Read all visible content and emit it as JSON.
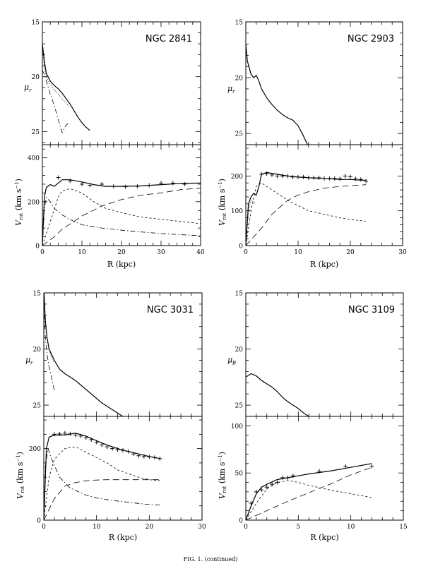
{
  "caption": "FIG. 1. (continued)",
  "chart_data": [
    {
      "type": "line",
      "title": "NGC 2841",
      "top": {
        "ylabel_main": "μ",
        "ylabel_sub": "r",
        "yticks": [
          "15",
          "20",
          "25"
        ],
        "ylim": [
          15,
          26.2
        ],
        "xlim": [
          0,
          40
        ],
        "series": [
          {
            "style": "solid",
            "x": [
              0,
              0.5,
              1,
              2,
              3,
              4,
              5,
              6,
              7,
              8,
              9,
              10,
              11,
              12
            ],
            "y": [
              17.0,
              18.6,
              19.7,
              20.4,
              20.8,
              21.1,
              21.5,
              22.0,
              22.5,
              23.1,
              23.7,
              24.2,
              24.6,
              24.9
            ]
          },
          {
            "style": "dotted",
            "x": [
              0,
              0.5,
              1,
              2,
              3,
              4,
              5,
              6,
              7
            ],
            "y": [
              17.2,
              19.2,
              20.0,
              20.7,
              21.2,
              21.6,
              22.0,
              22.4,
              22.8
            ]
          },
          {
            "style": "dashdot",
            "x": [
              0,
              0.5,
              1,
              2,
              3,
              4,
              5,
              6,
              7
            ],
            "y": [
              19.4,
              19.8,
              20.4,
              21.6,
              22.6,
              23.9,
              25.1,
              24.4,
              24.2
            ]
          }
        ]
      },
      "bottom": {
        "ylabel": "V",
        "ylabel_sub": "rot",
        "yunit": "(km s",
        "yunit_tail": ")",
        "xlabel": "R (kpc)",
        "xlim": [
          0,
          40
        ],
        "ylim": [
          0,
          460
        ],
        "xticks": [
          "0",
          "10",
          "20",
          "30",
          "40"
        ],
        "yticks": [
          "0",
          "200",
          "400"
        ],
        "points": {
          "x": [
            4,
            7,
            10,
            12,
            15,
            18,
            21,
            24,
            27,
            30,
            33,
            36
          ],
          "y": [
            310,
            295,
            280,
            275,
            280,
            270,
            268,
            270,
            275,
            285,
            285,
            280
          ]
        },
        "series": [
          {
            "style": "solid",
            "x": [
              0,
              0.5,
              1,
              2,
              3,
              4,
              5,
              7,
              10,
              13,
              16,
              20,
              25,
              30,
              35,
              40
            ],
            "y": [
              0,
              220,
              265,
              278,
              270,
              285,
              300,
              300,
              290,
              278,
              270,
              270,
              272,
              278,
              283,
              285
            ]
          },
          {
            "style": "dashed",
            "x": [
              0,
              2,
              4,
              5,
              7,
              10,
              13,
              16,
              20,
              25,
              30,
              35,
              40
            ],
            "y": [
              0,
              110,
              220,
              250,
              260,
              240,
              200,
              170,
              150,
              130,
              120,
              110,
              100
            ]
          },
          {
            "style": "longdash",
            "x": [
              0,
              3,
              5,
              8,
              10,
              15,
              20,
              25,
              30,
              35,
              40
            ],
            "y": [
              0,
              40,
              75,
              110,
              135,
              180,
              210,
              230,
              240,
              255,
              262
            ]
          },
          {
            "style": "dashdot",
            "x": [
              0,
              0.5,
              1,
              2,
              3,
              5,
              8,
              10,
              15,
              20,
              25,
              30,
              35,
              40
            ],
            "y": [
              0,
              170,
              220,
              200,
              170,
              140,
              110,
              95,
              80,
              70,
              62,
              55,
              50,
              45
            ]
          }
        ]
      }
    },
    {
      "type": "line",
      "title": "NGC 2903",
      "top": {
        "ylabel_main": "μ",
        "ylabel_sub": "r",
        "yticks": [
          "15",
          "20",
          "25"
        ],
        "ylim": [
          15,
          26.0
        ],
        "xlim": [
          0,
          30
        ],
        "series": [
          {
            "style": "solid",
            "x": [
              0,
              0.3,
              1,
              1.5,
              2,
              2.5,
              3,
              4,
              5,
              6,
              7,
              8,
              9,
              10,
              11,
              11.8
            ],
            "y": [
              17.0,
              18.5,
              19.7,
              20.0,
              19.8,
              20.3,
              21.0,
              21.8,
              22.4,
              22.9,
              23.3,
              23.6,
              23.8,
              24.3,
              25.2,
              26.0
            ]
          }
        ]
      },
      "bottom": {
        "ylabel": "V",
        "ylabel_sub": "rot",
        "yunit": "(km s",
        "yunit_tail": ")",
        "xlabel": "R (kpc)",
        "xlim": [
          0,
          30
        ],
        "ylim": [
          0,
          290
        ],
        "xticks": [
          "0",
          "10",
          "20",
          "30"
        ],
        "yticks": [
          "0",
          "100",
          "200"
        ],
        "points": {
          "x": [
            3,
            4,
            5,
            6,
            7,
            8,
            9,
            10,
            11,
            12,
            13,
            14,
            15,
            16,
            17,
            18,
            19,
            20,
            21,
            22,
            23
          ],
          "y": [
            205,
            207,
            203,
            200,
            200,
            200,
            197,
            197,
            197,
            195,
            195,
            195,
            193,
            193,
            193,
            192,
            200,
            198,
            192,
            190,
            185
          ]
        },
        "series": [
          {
            "style": "solid",
            "x": [
              0,
              0.5,
              1,
              1.5,
              2,
              2.5,
              3,
              4,
              6,
              8,
              10,
              12,
              14,
              16,
              18,
              20,
              22,
              23
            ],
            "y": [
              0,
              120,
              140,
              150,
              145,
              170,
              205,
              210,
              205,
              200,
              197,
              195,
              193,
              192,
              190,
              190,
              188,
              188
            ]
          },
          {
            "style": "dashed",
            "x": [
              0,
              1,
              2,
              3,
              4,
              6,
              8,
              10,
              12,
              15,
              18,
              20,
              23
            ],
            "y": [
              0,
              100,
              170,
              180,
              170,
              150,
              130,
              115,
              100,
              90,
              80,
              75,
              70
            ]
          },
          {
            "style": "longdash",
            "x": [
              0,
              3,
              5,
              8,
              10,
              12,
              15,
              18,
              20,
              23
            ],
            "y": [
              0,
              50,
              90,
              130,
              145,
              155,
              165,
              170,
              172,
              175
            ]
          },
          {
            "style": "dotted",
            "x": [
              0,
              0.5,
              1,
              2
            ],
            "y": [
              0,
              100,
              130,
              120
            ]
          }
        ]
      }
    },
    {
      "type": "line",
      "title": "NGC 3031",
      "top": {
        "ylabel_main": "μ",
        "ylabel_sub": "r",
        "yticks": [
          "15",
          "20",
          "25"
        ],
        "ylim": [
          15,
          26.0
        ],
        "xlim": [
          0,
          30
        ],
        "series": [
          {
            "style": "solid",
            "x": [
              0,
              0.3,
              0.6,
              1,
              2,
              3,
              4,
              5,
              6,
              7,
              8,
              9,
              10,
              11,
              12,
              13,
              14,
              15
            ],
            "y": [
              14.5,
              17.5,
              19.0,
              20.0,
              21.0,
              21.8,
              22.2,
              22.5,
              22.8,
              23.2,
              23.6,
              24.0,
              24.4,
              24.8,
              25.1,
              25.4,
              25.7,
              26.0
            ]
          },
          {
            "style": "dotted",
            "x": [
              0,
              0.5,
              1,
              1.5,
              2
            ],
            "y": [
              15.5,
              18.5,
              20.0,
              20.8,
              21.2
            ]
          },
          {
            "style": "dashdot",
            "x": [
              0,
              0.3,
              0.6,
              1,
              1.5,
              2
            ],
            "y": [
              16.0,
              19.0,
              20.4,
              21.6,
              22.6,
              23.7
            ]
          }
        ]
      },
      "bottom": {
        "ylabel": "V",
        "ylabel_sub": "rot",
        "yunit": "(km s",
        "yunit_tail": ")",
        "xlabel": "R (kpc)",
        "xlim": [
          0,
          30
        ],
        "ylim": [
          0,
          290
        ],
        "xticks": [
          "0",
          "10",
          "20",
          "30"
        ],
        "yticks": [
          "0",
          "200"
        ],
        "points": {
          "x": [
            2,
            3,
            4,
            5,
            6,
            7,
            8,
            9,
            10,
            11,
            12,
            13,
            14,
            15,
            16,
            17,
            18,
            19,
            20,
            21,
            22
          ],
          "y": [
            240,
            241,
            243,
            241,
            238,
            235,
            230,
            225,
            218,
            210,
            205,
            200,
            197,
            195,
            192,
            185,
            180,
            178,
            177,
            175,
            172
          ]
        },
        "series": [
          {
            "style": "solid",
            "x": [
              0,
              0.5,
              1,
              2,
              4,
              6,
              8,
              10,
              12,
              14,
              16,
              18,
              20,
              22
            ],
            "y": [
              0,
              200,
              232,
              238,
              238,
              243,
              235,
              222,
              210,
              200,
              192,
              185,
              178,
              172
            ]
          },
          {
            "style": "dashed",
            "x": [
              0,
              1,
              2,
              4,
              6,
              8,
              10,
              12,
              14,
              16,
              18,
              20,
              22
            ],
            "y": [
              0,
              120,
              170,
              200,
              205,
              190,
              175,
              160,
              140,
              130,
              120,
              113,
              110
            ]
          },
          {
            "style": "longdash",
            "x": [
              0,
              2,
              4,
              6,
              8,
              10,
              12,
              15,
              18,
              22
            ],
            "y": [
              0,
              60,
              95,
              105,
              110,
              112,
              113,
              113,
              113,
              113
            ]
          },
          {
            "style": "dashdot",
            "x": [
              0,
              0.3,
              0.8,
              1.5,
              3,
              5,
              8,
              10,
              13,
              16,
              19,
              22
            ],
            "y": [
              0,
              150,
              200,
              170,
              120,
              90,
              70,
              62,
              55,
              50,
              45,
              42
            ]
          }
        ]
      }
    },
    {
      "type": "line",
      "title": "NGC 3109",
      "top": {
        "ylabel_main": "μ",
        "ylabel_sub": "B",
        "yticks": [
          "15",
          "20",
          "25"
        ],
        "ylim": [
          15,
          26.0
        ],
        "xlim": [
          0,
          15
        ],
        "series": [
          {
            "style": "solid",
            "x": [
              0,
              0.5,
              1,
              1.5,
              2,
              2.5,
              3,
              3.5,
              4,
              4.5,
              5,
              5.5,
              6
            ],
            "y": [
              22.5,
              22.2,
              22.4,
              22.8,
              23.1,
              23.4,
              23.8,
              24.3,
              24.7,
              25.0,
              25.3,
              25.7,
              26.0
            ]
          }
        ]
      },
      "bottom": {
        "ylabel": "V",
        "ylabel_sub": "rot",
        "yunit": "(km s",
        "yunit_tail": ")",
        "xlabel": "R (kpc)",
        "xlim": [
          0,
          15
        ],
        "ylim": [
          0,
          110
        ],
        "xticks": [
          "0",
          "5",
          "10",
          "15"
        ],
        "yticks": [
          "0",
          "50",
          "100"
        ],
        "points": {
          "x": [
            0.5,
            1,
            1.5,
            2,
            2.5,
            3,
            3.5,
            4,
            4.5,
            7,
            9.5,
            12
          ],
          "y": [
            18,
            30,
            32,
            35,
            38,
            40,
            45,
            45,
            47,
            52,
            57,
            57
          ]
        },
        "series": [
          {
            "style": "solid",
            "x": [
              0,
              0.5,
              1,
              1.5,
              2,
              3,
              4,
              5,
              6,
              8,
              10,
              12
            ],
            "y": [
              0,
              15,
              28,
              35,
              38,
              43,
              45,
              47,
              49,
              52,
              56,
              60
            ]
          },
          {
            "style": "dashed",
            "x": [
              0,
              1,
              2,
              3,
              4,
              5,
              6,
              8,
              10,
              12
            ],
            "y": [
              0,
              18,
              33,
              40,
              42,
              40,
              37,
              32,
              28,
              24
            ]
          },
          {
            "style": "longdash",
            "x": [
              0,
              2,
              4,
              6,
              8,
              10,
              12
            ],
            "y": [
              0,
              10,
              20,
              29,
              38,
              48,
              56
            ]
          }
        ]
      }
    }
  ]
}
